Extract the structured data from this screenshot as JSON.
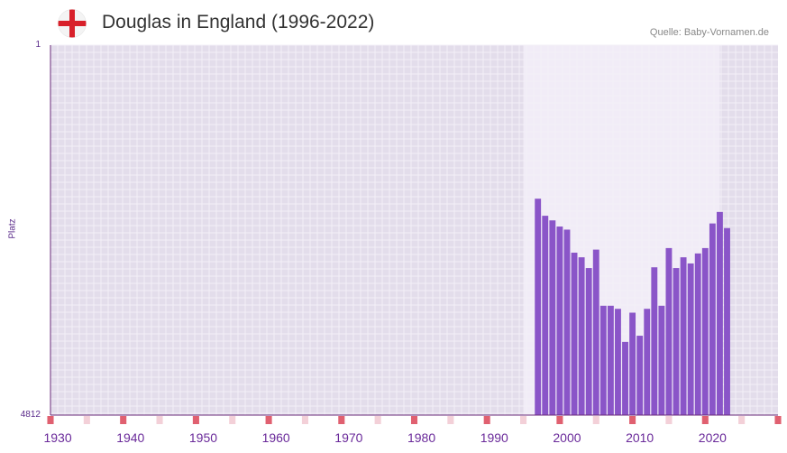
{
  "header": {
    "title": "Douglas in England (1996-2022)",
    "source": "Quelle: Baby-Vornamen.de",
    "flag_icon": "england-flag-icon"
  },
  "colors": {
    "bar": "#8a55c8",
    "plot_bg": "#e3ddeb",
    "highlight_bg": "#f1ecf7",
    "grid": "#f3f0f7",
    "axis": "#6a2a7a",
    "decade_marker": "#e06070",
    "mid_marker": "#f3d0d8",
    "tick_text": "#6a2a9a"
  },
  "chart_data": {
    "type": "bar",
    "title": "Douglas in England (1996-2022)",
    "xlabel": "",
    "ylabel": "Platz",
    "y_top_label": "1",
    "y_bottom_label": "4812",
    "ylim": [
      4812,
      1
    ],
    "xlim": [
      1929,
      2029
    ],
    "highlight_range": [
      1994,
      2021
    ],
    "x_tick_labels": [
      "1930",
      "1940",
      "1950",
      "1960",
      "1970",
      "1980",
      "1990",
      "2000",
      "2010",
      "2020"
    ],
    "x_ticks": [
      1930,
      1940,
      1950,
      1960,
      1970,
      1980,
      1990,
      2000,
      2010,
      2020
    ],
    "decade_markers": [
      1929,
      1939,
      1949,
      1959,
      1969,
      1979,
      1989,
      1999,
      2009,
      2019,
      2029
    ],
    "mid_markers": [
      1934,
      1944,
      1954,
      1964,
      1974,
      1984,
      1994,
      2004,
      2014,
      2024
    ],
    "years": [
      1996,
      1997,
      1998,
      1999,
      2000,
      2001,
      2002,
      2003,
      2004,
      2005,
      2006,
      2007,
      2008,
      2009,
      2010,
      2011,
      2012,
      2013,
      2014,
      2015,
      2016,
      2017,
      2018,
      2019,
      2020,
      2021,
      2022
    ],
    "values": [
      1998,
      2220,
      2280,
      2360,
      2400,
      2700,
      2760,
      2900,
      2660,
      3390,
      3390,
      3430,
      3860,
      3480,
      3780,
      3430,
      2890,
      3390,
      2640,
      2900,
      2760,
      2840,
      2710,
      2640,
      2320,
      2170,
      2380
    ]
  }
}
